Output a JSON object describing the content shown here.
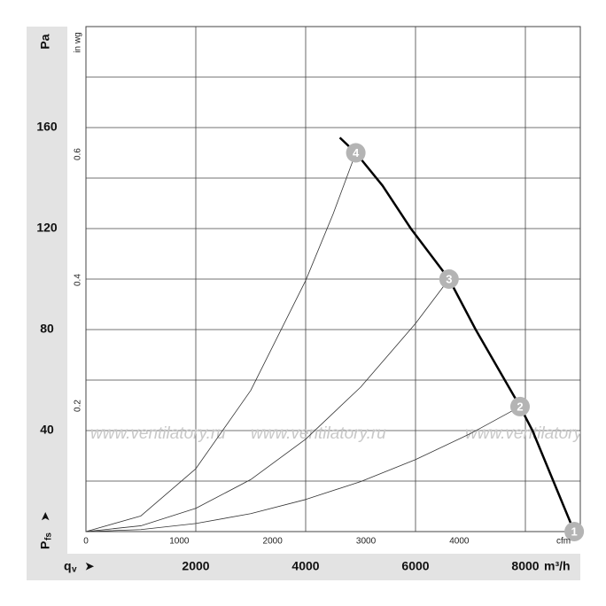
{
  "chart_data": {
    "type": "line",
    "y_label": "Pa",
    "y2_label": "in wg",
    "y_symbol": "P",
    "y_symbol_sub": "fs",
    "x_symbol": "q",
    "x_symbol_sub": "v",
    "x_unit": "m³/h",
    "x2_unit": "cfm",
    "arrow": "➤",
    "watermark": "www.ventilatory.ru",
    "xlim": [
      0,
      9000
    ],
    "xticks": [
      2000,
      4000,
      6000,
      8000
    ],
    "xgrid": [
      2000,
      4000,
      6000,
      8000
    ],
    "ylim": [
      0,
      200
    ],
    "yticks": [
      40,
      80,
      120,
      160
    ],
    "ygrid": [
      20,
      40,
      60,
      80,
      100,
      120,
      140,
      160,
      180,
      200
    ],
    "y2lim": [
      0,
      0.803
    ],
    "y2ticks": [
      0.2,
      0.4,
      0.6
    ],
    "x2lim": [
      0,
      5297
    ],
    "x2ticks": [
      0,
      1000,
      2000,
      3000,
      4000
    ],
    "series": [
      {
        "color": "#000000",
        "x": [
          4622,
          4913,
          5400,
          5915,
          6610,
          7095,
          7903,
          8129,
          8889
        ],
        "values": [
          156,
          150,
          137,
          120,
          100,
          80,
          49.5,
          40,
          0
        ]
      },
      {
        "color": "#333333",
        "x": [
          0,
          1000,
          2000,
          3000,
          4000,
          4500,
          4913
        ],
        "values": [
          0,
          6.2,
          24.9,
          55.9,
          99.4,
          125.8,
          150
        ]
      },
      {
        "color": "#333333",
        "x": [
          0,
          1000,
          2000,
          3000,
          4000,
          5000,
          6000,
          6610
        ],
        "values": [
          0,
          2.3,
          9.2,
          20.6,
          36.6,
          57.2,
          82.4,
          100
        ]
      },
      {
        "color": "#333333",
        "x": [
          0,
          1000,
          2000,
          3000,
          4000,
          5000,
          6000,
          7000,
          7903
        ],
        "values": [
          0,
          0.8,
          3.2,
          7.1,
          12.7,
          19.8,
          28.5,
          38.8,
          49.5
        ]
      }
    ],
    "markers": {
      "color": "#b4b4b4",
      "labels": [
        "1",
        "2",
        "3",
        "4"
      ],
      "x": [
        8889,
        7903,
        6610,
        4913
      ],
      "values": [
        0,
        49.5,
        100,
        150
      ]
    }
  }
}
